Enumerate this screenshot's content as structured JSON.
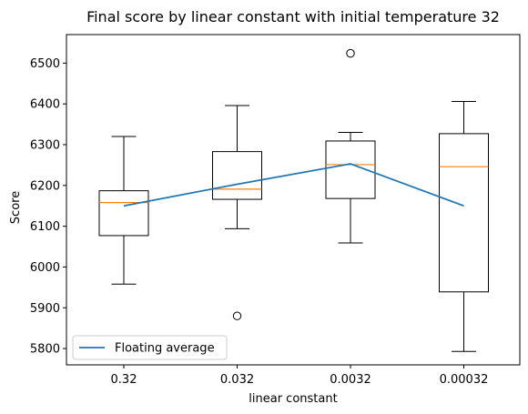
{
  "chart_data": {
    "type": "box",
    "title": "Final score by linear constant with initial temperature 32",
    "xlabel": "linear constant",
    "ylabel": "Score",
    "categories": [
      "0.32",
      "0.032",
      "0.0032",
      "0.00032"
    ],
    "ylim": [
      5760,
      6570
    ],
    "yticks": [
      5800,
      5900,
      6000,
      6100,
      6200,
      6300,
      6400,
      6500
    ],
    "boxes": [
      {
        "category": "0.32",
        "whisker_low": 5958,
        "q1": 6077,
        "median": 6158,
        "q3": 6187,
        "whisker_high": 6320,
        "outliers": []
      },
      {
        "category": "0.032",
        "whisker_low": 6094,
        "q1": 6166,
        "median": 6191,
        "q3": 6283,
        "whisker_high": 6396,
        "outliers": [
          5880
        ]
      },
      {
        "category": "0.0032",
        "whisker_low": 6059,
        "q1": 6168,
        "median": 6251,
        "q3": 6309,
        "whisker_high": 6330,
        "outliers": [
          6524
        ]
      },
      {
        "category": "0.00032",
        "whisker_low": 5793,
        "q1": 5939,
        "median": 6246,
        "q3": 6327,
        "whisker_high": 6406,
        "outliers": []
      }
    ],
    "series": [
      {
        "name": "Floating average",
        "type": "line",
        "values": [
          6150,
          6203,
          6253,
          6150
        ]
      }
    ],
    "legend": {
      "position": "lower-left",
      "entries": [
        "Floating average"
      ]
    },
    "grid": false,
    "colors": {
      "box": "#000000",
      "median": "#ff7f0e",
      "line": "#1f77b4"
    }
  }
}
